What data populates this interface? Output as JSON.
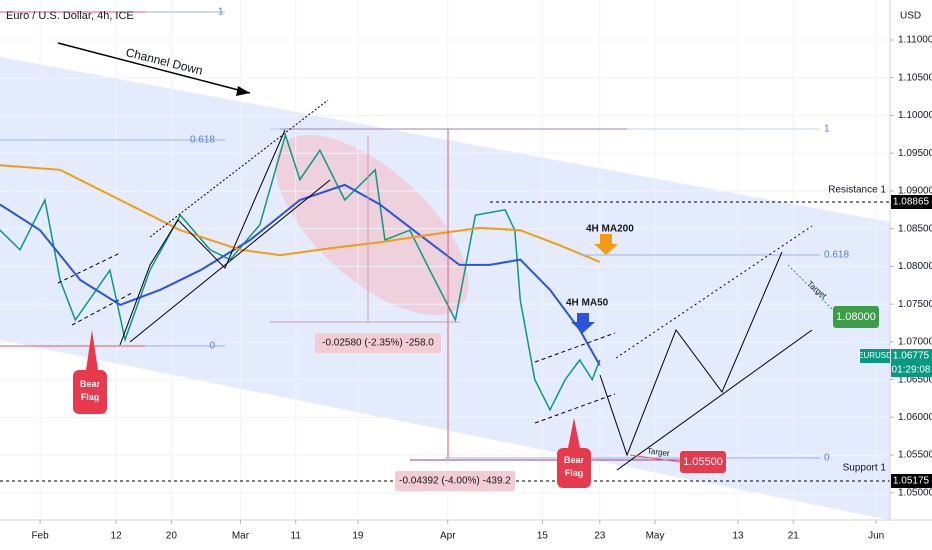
{
  "chart_data": {
    "type": "line",
    "title": "Euro / U.S. Dollar, 4h, ICE",
    "currency": "USD",
    "xlim": [
      26.2,
      155
    ],
    "xticks": [
      {
        "value": 32,
        "label": "Feb"
      },
      {
        "value": 43,
        "label": "12"
      },
      {
        "value": 51,
        "label": "20"
      },
      {
        "value": 61,
        "label": "Mar"
      },
      {
        "value": 69,
        "label": "11"
      },
      {
        "value": 78,
        "label": "19"
      },
      {
        "value": 91,
        "label": "Apr"
      },
      {
        "value": 104.7,
        "label": "15"
      },
      {
        "value": 113,
        "label": "23"
      },
      {
        "value": 121,
        "label": "May"
      },
      {
        "value": 133,
        "label": "13"
      },
      {
        "value": 141,
        "label": "21"
      },
      {
        "value": 153,
        "label": "Jun"
      }
    ],
    "ylim": [
      1.0464,
      1.1153
    ],
    "yticks": [
      {
        "value": 1.05,
        "label": "1.05000"
      },
      {
        "value": 1.055,
        "label": "1.05500"
      },
      {
        "value": 1.06,
        "label": "1.06000"
      },
      {
        "value": 1.065,
        "label": "1.06500"
      },
      {
        "value": 1.07,
        "label": "1.07000"
      },
      {
        "value": 1.075,
        "label": "1.07500"
      },
      {
        "value": 1.08,
        "label": "1.08000"
      },
      {
        "value": 1.085,
        "label": "1.08500"
      },
      {
        "value": 1.09,
        "label": "1.09000"
      },
      {
        "value": 1.095,
        "label": "1.09500"
      },
      {
        "value": 1.1,
        "label": "1.10000"
      },
      {
        "value": 1.105,
        "label": "1.10500"
      },
      {
        "value": 1.11,
        "label": "1.11000"
      }
    ],
    "series": [
      {
        "name": "EURUSD",
        "color": "#089981",
        "x": [
          26.2,
          29.1,
          32.7,
          34.9,
          37.1,
          42.1,
          44.3,
          47.9,
          52.3,
          56.6,
          59.5,
          63.8,
          67.5,
          69.6,
          72.5,
          76.1,
          80.5,
          81.9,
          85.5,
          88.4,
          92.1,
          95.0,
          99.3,
          100.7,
          101.5,
          103.6,
          105.8,
          108.0,
          110.1,
          111.9,
          113.0
        ],
        "values": [
          1.0848,
          1.0822,
          1.0888,
          1.0782,
          1.0729,
          1.0795,
          1.0703,
          1.0795,
          1.0868,
          1.0822,
          1.0809,
          1.0855,
          1.0974,
          1.0915,
          1.0954,
          1.0888,
          1.0928,
          1.0835,
          1.0848,
          1.0795,
          1.0729,
          1.0868,
          1.0875,
          1.0848,
          1.0755,
          1.065,
          1.061,
          1.065,
          1.0676,
          1.065,
          1.0676
        ]
      },
      {
        "name": "4H MA50",
        "color": "#2a55d8",
        "x": [
          26.2,
          32,
          37.8,
          43.6,
          49.4,
          55.2,
          62.4,
          69.6,
          76.1,
          81.2,
          86.9,
          92.7,
          97.1,
          101.5,
          105.8,
          110.1,
          113.0
        ],
        "values": [
          1.0882,
          1.0848,
          1.0782,
          1.0749,
          1.0769,
          1.0795,
          1.0835,
          1.0888,
          1.0908,
          1.0882,
          1.0842,
          1.0802,
          1.0802,
          1.0809,
          1.0769,
          1.0716,
          1.0669
        ]
      },
      {
        "name": "4H MA200",
        "color": "#f39c12",
        "x": [
          26.2,
          34.9,
          43.6,
          52.3,
          61,
          66.8,
          74,
          81.2,
          88.4,
          95.6,
          101.5,
          107.2,
          113
        ],
        "values": [
          1.0934,
          1.0928,
          1.0888,
          1.0848,
          1.0822,
          1.0815,
          1.0824,
          1.0832,
          1.0842,
          1.0851,
          1.0848,
          1.0828,
          1.0806
        ]
      }
    ],
    "annotations": {
      "channel": "Channel Down",
      "resistance": "Resistance 1",
      "support": "Support 1",
      "bear_flag": "Bear Flag",
      "target": "Target",
      "target_high": "1.08000",
      "target_low": "1.05500",
      "measure_1": "-0.02580 (-2.35%) -258.0",
      "measure_2": "-0.04392 (-4.00%) -439.2",
      "fib_618": "0.618",
      "fib_1": "1",
      "fib_0": "0",
      "resistance_price": "1.08865",
      "support_price": "1.05175",
      "last_price": "1.06775",
      "countdown": "01:29:08"
    }
  }
}
